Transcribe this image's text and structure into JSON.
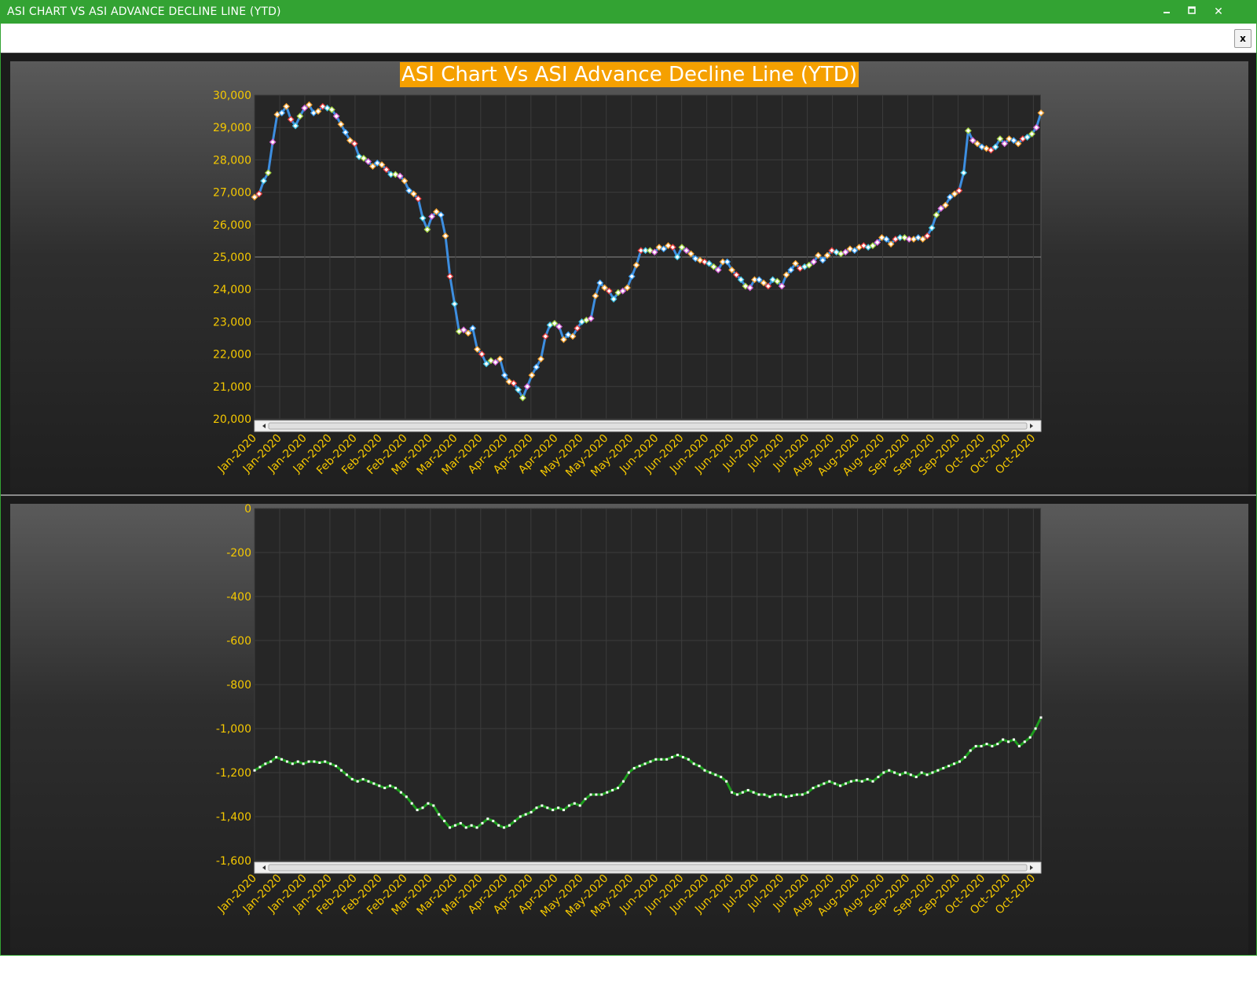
{
  "window": {
    "title": "ASI CHART VS ASI ADVANCE DECLINE LINE (YTD)",
    "minimize_icon": "minimize-icon",
    "maximize_icon": "maximize-icon",
    "close_icon": "close-icon",
    "close_glyph": "✕"
  },
  "toolstrip": {
    "close_label": "x"
  },
  "chart_data": [
    {
      "type": "line",
      "title": "ASI Chart Vs ASI Advance Decline Line (YTD)",
      "ylim": [
        20000,
        30000
      ],
      "yticks": [
        "30,000",
        "29,000",
        "28,000",
        "27,000",
        "26,000",
        "25,000",
        "24,000",
        "23,000",
        "22,000",
        "21,000",
        "20,000"
      ],
      "xticks": [
        "Jan-2020",
        "Jan-2020",
        "Jan-2020",
        "Jan-2020",
        "Feb-2020",
        "Feb-2020",
        "Feb-2020",
        "Mar-2020",
        "Mar-2020",
        "Mar-2020",
        "Apr-2020",
        "Apr-2020",
        "Apr-2020",
        "May-2020",
        "May-2020",
        "May-2020",
        "Jun-2020",
        "Jun-2020",
        "Jun-2020",
        "Jun-2020",
        "Jul-2020",
        "Jul-2020",
        "Jul-2020",
        "Aug-2020",
        "Aug-2020",
        "Aug-2020",
        "Sep-2020",
        "Sep-2020",
        "Sep-2020",
        "Oct-2020",
        "Oct-2020",
        "Oct-2020"
      ],
      "grid": true,
      "line_color": "#3d8ee0",
      "series": [
        {
          "values": [
            26850,
            26950,
            27350,
            27600,
            28550,
            29400,
            29450,
            29650,
            29250,
            29050,
            29350,
            29600,
            29700,
            29450,
            29500,
            29650,
            29600,
            29550,
            29350,
            29100,
            28850,
            28600,
            28500,
            28100,
            28050,
            27950,
            27800,
            27900,
            27850,
            27700,
            27550,
            27550,
            27500,
            27350,
            27050,
            26950,
            26800,
            26200,
            25850,
            26250,
            26400,
            26300,
            25650,
            24400,
            23550,
            22700,
            22750,
            22650,
            22800,
            22150,
            22000,
            21700,
            21800,
            21750,
            21850,
            21350,
            21150,
            21100,
            20900,
            20650,
            21000,
            21350,
            21600,
            21850,
            22550,
            22900,
            22950,
            22850,
            22450,
            22600,
            22550,
            22800,
            23000,
            23050,
            23100,
            23800,
            24200,
            24050,
            23950,
            23700,
            23900,
            23950,
            24050,
            24400,
            24750,
            25200,
            25200,
            25200,
            25150,
            25300,
            25250,
            25350,
            25300,
            25000,
            25300,
            25200,
            25100,
            24950,
            24900,
            24850,
            24800,
            24700,
            24600,
            24850,
            24850,
            24600,
            24450,
            24300,
            24100,
            24050,
            24300,
            24300,
            24200,
            24100,
            24300,
            24250,
            24100,
            24450,
            24600,
            24800,
            24650,
            24700,
            24750,
            24850,
            25050,
            24900,
            25050,
            25200,
            25150,
            25100,
            25150,
            25250,
            25200,
            25300,
            25350,
            25300,
            25350,
            25450,
            25600,
            25550,
            25400,
            25550,
            25600,
            25600,
            25550,
            25550,
            25600,
            25550,
            25650,
            25900,
            26300,
            26500,
            26600,
            26850,
            26950,
            27050,
            27600,
            28900,
            28600,
            28500,
            28400,
            28350,
            28300,
            28400,
            28650,
            28500,
            28650,
            28600,
            28500,
            28650,
            28700,
            28800,
            29000,
            29450
          ]
        }
      ]
    },
    {
      "type": "line",
      "title": "",
      "ylim": [
        -1600,
        0
      ],
      "yticks": [
        "0",
        "-200",
        "-400",
        "-600",
        "-800",
        "-1,000",
        "-1,200",
        "-1,400",
        "-1,600"
      ],
      "xticks": [
        "Jan-2020",
        "Jan-2020",
        "Jan-2020",
        "Jan-2020",
        "Feb-2020",
        "Feb-2020",
        "Feb-2020",
        "Mar-2020",
        "Mar-2020",
        "Mar-2020",
        "Apr-2020",
        "Apr-2020",
        "Apr-2020",
        "May-2020",
        "May-2020",
        "May-2020",
        "Jun-2020",
        "Jun-2020",
        "Jun-2020",
        "Jun-2020",
        "Jul-2020",
        "Jul-2020",
        "Jul-2020",
        "Aug-2020",
        "Aug-2020",
        "Aug-2020",
        "Sep-2020",
        "Sep-2020",
        "Sep-2020",
        "Oct-2020",
        "Oct-2020",
        "Oct-2020"
      ],
      "grid": true,
      "line_color": "#1e9e1e",
      "series": [
        {
          "values": [
            -1190,
            -1175,
            -1160,
            -1150,
            -1130,
            -1140,
            -1150,
            -1160,
            -1150,
            -1160,
            -1150,
            -1150,
            -1155,
            -1150,
            -1160,
            -1170,
            -1190,
            -1210,
            -1230,
            -1240,
            -1230,
            -1240,
            -1250,
            -1260,
            -1270,
            -1260,
            -1270,
            -1290,
            -1310,
            -1340,
            -1370,
            -1360,
            -1340,
            -1350,
            -1390,
            -1420,
            -1450,
            -1440,
            -1430,
            -1450,
            -1440,
            -1450,
            -1430,
            -1410,
            -1420,
            -1440,
            -1450,
            -1440,
            -1420,
            -1400,
            -1390,
            -1380,
            -1360,
            -1350,
            -1360,
            -1370,
            -1360,
            -1370,
            -1350,
            -1340,
            -1350,
            -1320,
            -1300,
            -1300,
            -1300,
            -1290,
            -1280,
            -1270,
            -1240,
            -1200,
            -1180,
            -1170,
            -1160,
            -1150,
            -1140,
            -1140,
            -1140,
            -1130,
            -1120,
            -1130,
            -1140,
            -1160,
            -1170,
            -1190,
            -1200,
            -1210,
            -1220,
            -1240,
            -1290,
            -1300,
            -1290,
            -1280,
            -1290,
            -1300,
            -1300,
            -1310,
            -1300,
            -1300,
            -1310,
            -1305,
            -1300,
            -1300,
            -1290,
            -1270,
            -1260,
            -1250,
            -1240,
            -1250,
            -1260,
            -1250,
            -1240,
            -1235,
            -1240,
            -1230,
            -1240,
            -1220,
            -1200,
            -1190,
            -1200,
            -1210,
            -1200,
            -1210,
            -1220,
            -1200,
            -1210,
            -1200,
            -1190,
            -1180,
            -1170,
            -1160,
            -1150,
            -1130,
            -1100,
            -1080,
            -1080,
            -1070,
            -1080,
            -1070,
            -1050,
            -1060,
            -1050,
            -1080,
            -1060,
            -1040,
            -1000,
            -950
          ]
        }
      ]
    }
  ]
}
